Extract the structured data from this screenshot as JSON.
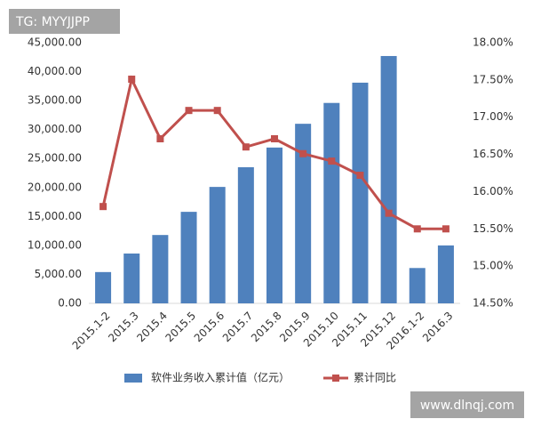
{
  "chart_data": {
    "type": "bar-line",
    "categories": [
      "2015.1-2",
      "2015.3",
      "2015.4",
      "2015.5",
      "2015.6",
      "2015.7",
      "2015.8",
      "2015.9",
      "2015.10",
      "2015.11",
      "2015.12",
      "2016.1-2",
      "2016.3"
    ],
    "series": [
      {
        "name": "软件业务收入累计值（亿元）",
        "type": "bar",
        "color": "#4f81bd",
        "values": [
          5400,
          8600,
          11800,
          15800,
          20100,
          23500,
          26900,
          31000,
          34600,
          38100,
          42700,
          6100,
          10000
        ]
      },
      {
        "name": "累计同比",
        "type": "line",
        "axis": "y2",
        "color": "#c0504d",
        "values": [
          15.8,
          17.51,
          16.71,
          17.09,
          17.09,
          16.6,
          16.71,
          16.51,
          16.41,
          16.22,
          15.71,
          15.5,
          15.5
        ]
      }
    ],
    "ylim": [
      0,
      45000
    ],
    "yticks": [
      {
        "value": 0,
        "label": "0.00"
      },
      {
        "value": 5000,
        "label": "5,000.00"
      },
      {
        "value": 10000,
        "label": "10,000.00"
      },
      {
        "value": 15000,
        "label": "15,000.00"
      },
      {
        "value": 20000,
        "label": "20,000.00"
      },
      {
        "value": 25000,
        "label": "25,000.00"
      },
      {
        "value": 30000,
        "label": "30,000.00"
      },
      {
        "value": 35000,
        "label": "35,000.00"
      },
      {
        "value": 40000,
        "label": "40,000.00"
      },
      {
        "value": 45000,
        "label": "45,000.00"
      }
    ],
    "y2lim": [
      14.5,
      18
    ],
    "y2ticks": [
      {
        "value": 14.5,
        "label": "14.50%"
      },
      {
        "value": 15,
        "label": "15.00%"
      },
      {
        "value": 15.5,
        "label": "15.50%"
      },
      {
        "value": 16,
        "label": "16.00%"
      },
      {
        "value": 16.5,
        "label": "16.50%"
      },
      {
        "value": 17,
        "label": "17.00%"
      },
      {
        "value": 17.5,
        "label": "17.50%"
      },
      {
        "value": 18,
        "label": "18.00%"
      }
    ],
    "grid": false,
    "legend": "bottom"
  },
  "watermarks": [
    "TG: MYYJJPP",
    "www.dlnqj.com"
  ]
}
